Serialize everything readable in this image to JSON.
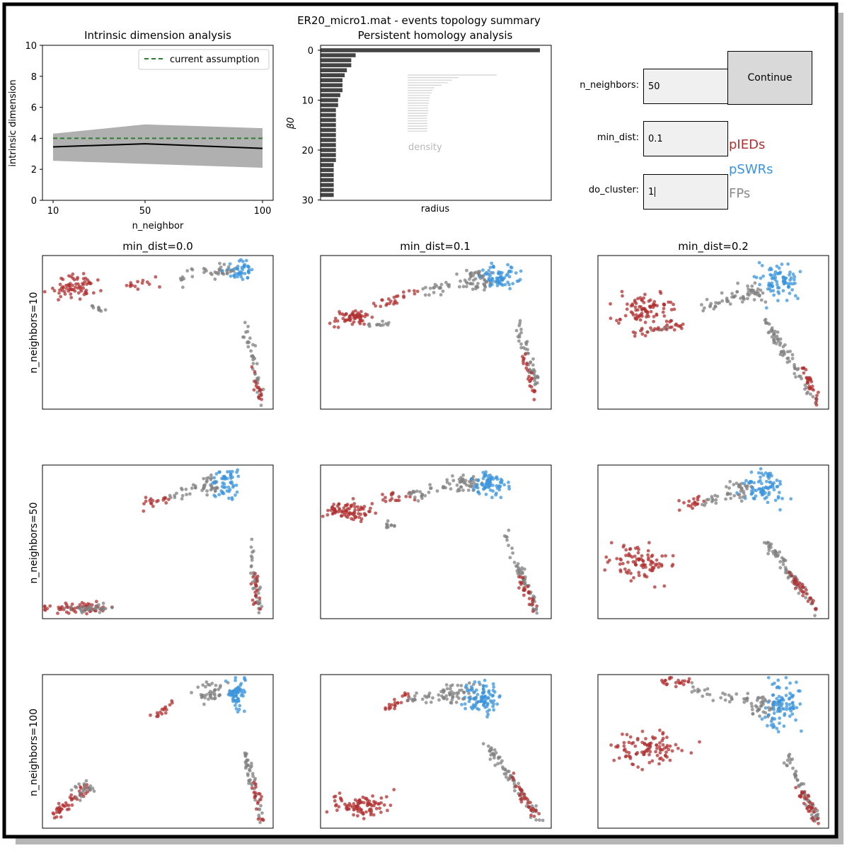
{
  "figure_title": "ER20_micro1.mat - events topology summary",
  "chart_data": [
    {
      "type": "line",
      "title": "Intrinsic dimension analysis",
      "xlabel": "n_neighbor",
      "ylabel": "intrinsic dimension",
      "x": [
        10,
        50,
        100
      ],
      "x_ticks": [
        "10",
        "50",
        "100"
      ],
      "y_ticks": [
        "0",
        "2",
        "4",
        "6",
        "8",
        "10"
      ],
      "ylim": [
        0,
        10
      ],
      "series": [
        {
          "name": "",
          "type": "line",
          "values": [
            3.45,
            3.65,
            3.35
          ],
          "color": "#000000"
        },
        {
          "name": "",
          "type": "band",
          "lower": [
            2.55,
            2.35,
            2.1
          ],
          "upper": [
            4.3,
            4.9,
            4.65
          ],
          "color": "#b0b0b0"
        },
        {
          "name": "current assumption",
          "type": "dashed",
          "values": [
            4.0,
            4.0,
            4.0
          ],
          "color": "#2e7d32"
        }
      ],
      "legend": "top-right"
    },
    {
      "type": "bar",
      "orientation": "horizontal",
      "title": "Persistent homology analysis",
      "xlabel": "radius",
      "ylabel": "β0",
      "y_ticks": [
        "0",
        "10",
        "20",
        "30"
      ],
      "bar_values": [
        1.0,
        0.16,
        0.14,
        0.14,
        0.12,
        0.11,
        0.1,
        0.1,
        0.1,
        0.09,
        0.08,
        0.08,
        0.07,
        0.07,
        0.07,
        0.07,
        0.07,
        0.07,
        0.07,
        0.07,
        0.07,
        0.07,
        0.07,
        0.06,
        0.06,
        0.06,
        0.06,
        0.06,
        0.06,
        0.06
      ],
      "bar_color": "#444444",
      "inset_label": "density",
      "inset_values": [
        1.0,
        0.57,
        0.5,
        0.45,
        0.38,
        0.3,
        0.28,
        0.27,
        0.25,
        0.25,
        0.24,
        0.24,
        0.23,
        0.23,
        0.23,
        0.23,
        0.22,
        0.22,
        0.22,
        0.22,
        0.22,
        0.22,
        0.22
      ],
      "inset_color": "#d0d0d0"
    },
    {
      "type": "scatter",
      "grid_rows": [
        "n_neighbors=10",
        "n_neighbors=50",
        "n_neighbors=100"
      ],
      "grid_cols": [
        "min_dist=0.0",
        "min_dist=0.1",
        "min_dist=0.2"
      ],
      "series": [
        {
          "name": "pIEDs",
          "color": "#b03030"
        },
        {
          "name": "pSWRs",
          "color": "#3a94dc"
        },
        {
          "name": "FPs",
          "color": "#808080"
        }
      ]
    }
  ],
  "controls": {
    "n_neighbors": {
      "label": "n_neighbors:",
      "value": "50"
    },
    "min_dist": {
      "label": "min_dist:",
      "value": "0.1"
    },
    "do_cluster": {
      "label": "do_cluster:",
      "value": "1"
    },
    "continue_label": "Continue"
  },
  "legend": {
    "pieds": "pIEDs",
    "pswrs": "pSWRs",
    "fps": "FPs",
    "colors": {
      "pieds": "#b03030",
      "pswrs": "#3a94dc",
      "fps": "#8a8a8a"
    }
  }
}
